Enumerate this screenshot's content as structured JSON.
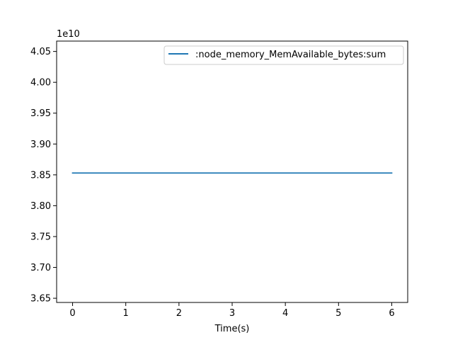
{
  "chart_data": {
    "type": "line",
    "title": "",
    "xlabel": "Time(s)",
    "ylabel": "",
    "y_offset_label": "1e10",
    "xlim": [
      -0.3,
      6.3
    ],
    "ylim": [
      3.6432,
      4.0668
    ],
    "xticks": [
      0,
      1,
      2,
      3,
      4,
      5,
      6
    ],
    "xtick_labels": [
      "0",
      "1",
      "2",
      "3",
      "4",
      "5",
      "6"
    ],
    "yticks": [
      3.65,
      3.7,
      3.75,
      3.8,
      3.85,
      3.9,
      3.95,
      4.0,
      4.05
    ],
    "ytick_labels": [
      "3.65",
      "3.70",
      "3.75",
      "3.80",
      "3.85",
      "3.90",
      "3.95",
      "4.00",
      "4.05"
    ],
    "grid": false,
    "legend_position": "top-right",
    "series": [
      {
        "name": ":node_memory_MemAvailable_bytes:sum",
        "color": "#1f77b4",
        "x": [
          0,
          1,
          2,
          3,
          4,
          5,
          6
        ],
        "y": [
          3.853,
          3.853,
          3.853,
          3.853,
          3.853,
          3.853,
          3.853
        ]
      }
    ]
  }
}
